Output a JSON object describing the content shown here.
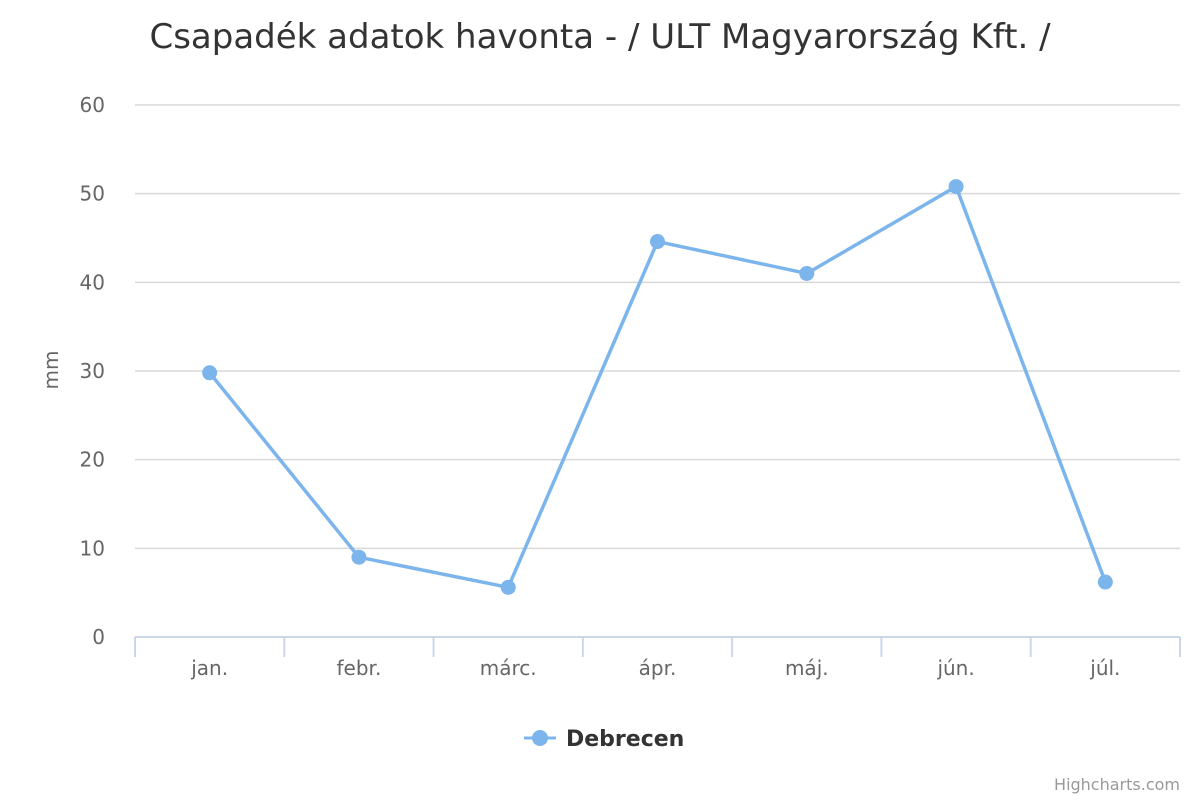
{
  "chart_data": {
    "type": "line",
    "title": "Csapadék adatok havonta - / ULT Magyarország Kft. /",
    "xlabel": "",
    "ylabel": "mm",
    "categories": [
      "jan.",
      "febr.",
      "márc.",
      "ápr.",
      "máj.",
      "jún.",
      "júl."
    ],
    "ylim": [
      0,
      60
    ],
    "yticks": [
      "0",
      "10",
      "20",
      "30",
      "40",
      "50",
      "60"
    ],
    "grid": true,
    "legend_position": "bottom-center",
    "series": [
      {
        "name": "Debrecen",
        "color": "#7cb5ec",
        "values": [
          29.8,
          9.0,
          5.6,
          44.6,
          41.0,
          50.8,
          6.2
        ]
      }
    ]
  },
  "credits": "Highcharts.com"
}
